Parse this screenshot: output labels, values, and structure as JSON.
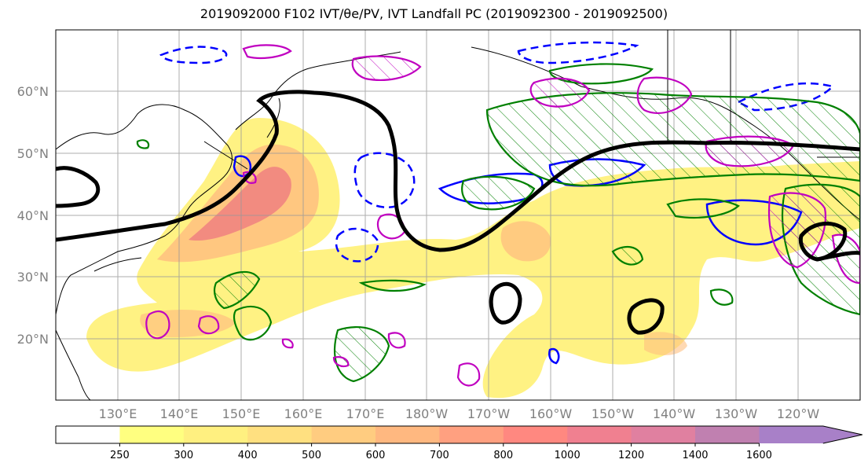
{
  "title": "2019092000 F102 IVT/θe/PV, IVT Landfall PC (2019092300 - 2019092500)",
  "map": {
    "lat_labels": [
      "60°N",
      "50°N",
      "40°N",
      "30°N",
      "20°N"
    ],
    "lon_labels": [
      "130°E",
      "140°E",
      "150°E",
      "160°E",
      "170°E",
      "180°W",
      "170°W",
      "160°W",
      "150°W",
      "140°W",
      "130°W",
      "120°W"
    ],
    "lat_range": [
      10,
      70
    ],
    "lon_range": [
      120,
      250
    ],
    "grid": true
  },
  "colorbar": {
    "ticks": [
      "250",
      "300",
      "400",
      "500",
      "600",
      "700",
      "800",
      "1000",
      "1200",
      "1400",
      "1600"
    ],
    "colors": [
      "#ffffff",
      "#ffff80",
      "#fff080",
      "#ffe080",
      "#ffcc80",
      "#ffb880",
      "#ffa080",
      "#ff8880",
      "#f08090",
      "#e080a0",
      "#c080b0",
      "#a880c8"
    ]
  },
  "colors": {
    "ivt_fill_low": "#fff176",
    "ivt_fill_mid": "#ffc080",
    "ivt_fill_high": "#f08080",
    "theta_e": "#0000ff",
    "pv_green": "#008000",
    "pv_magenta": "#c000c0",
    "landfall_pc": "#000000"
  }
}
